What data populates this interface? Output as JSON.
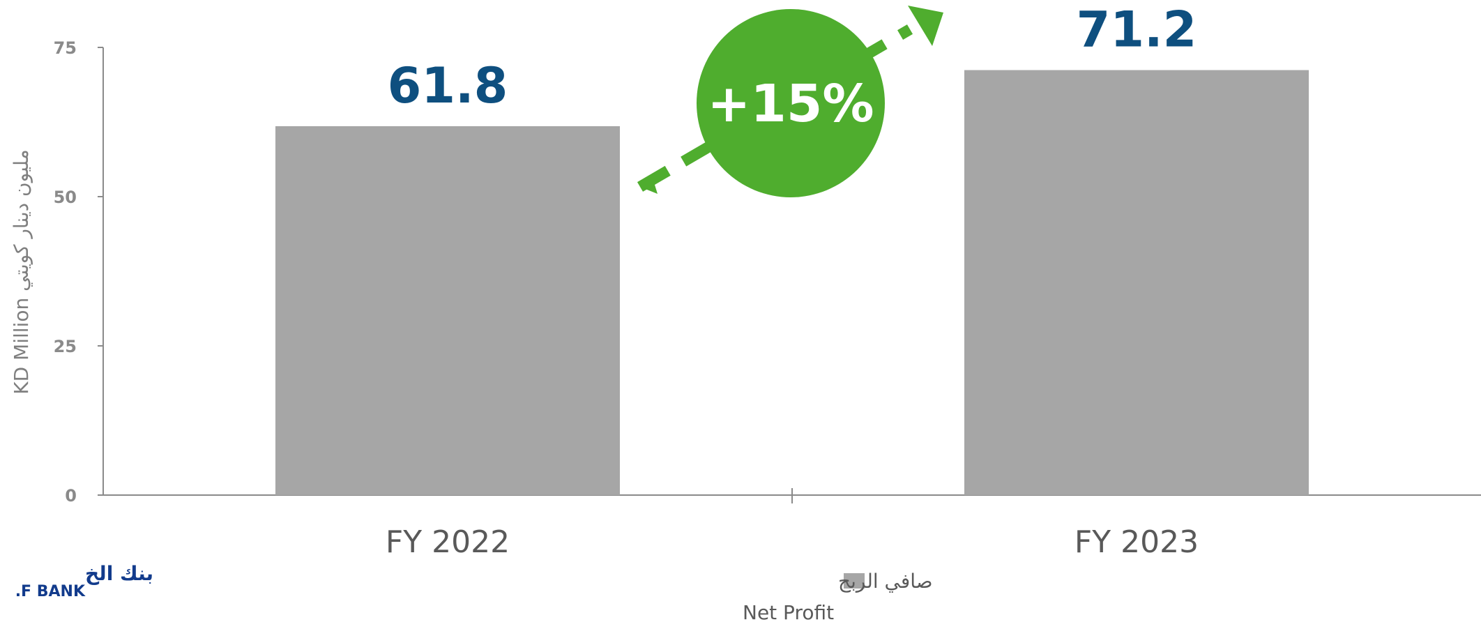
{
  "chart_data": {
    "type": "bar",
    "categories": [
      "FY 2022",
      "FY 2023"
    ],
    "series": [
      {
        "name": "صافي الربح Net Profit",
        "values": [
          61.8,
          71.2
        ]
      }
    ],
    "data_labels": [
      "61.8",
      "71.2"
    ],
    "ylabel": "KD Million مليون دينار كويتي",
    "ylim": [
      0,
      75
    ],
    "yticks": [
      0,
      25,
      50,
      75
    ],
    "grid": false,
    "legend": {
      "position": "bottom-center",
      "label_ar": "صافي الربح",
      "label_en": "Net Profit"
    },
    "annotation": {
      "text": "+15%"
    }
  },
  "colors": {
    "bar": "#a6a6a6",
    "data_label": "#0e4f7f",
    "badge": "#4fad2e",
    "axis": "#8a8a8a",
    "logo": "#123b8c"
  },
  "logo": {
    "text_ar": "بنك الخ",
    "text_en": ".F BANK"
  }
}
